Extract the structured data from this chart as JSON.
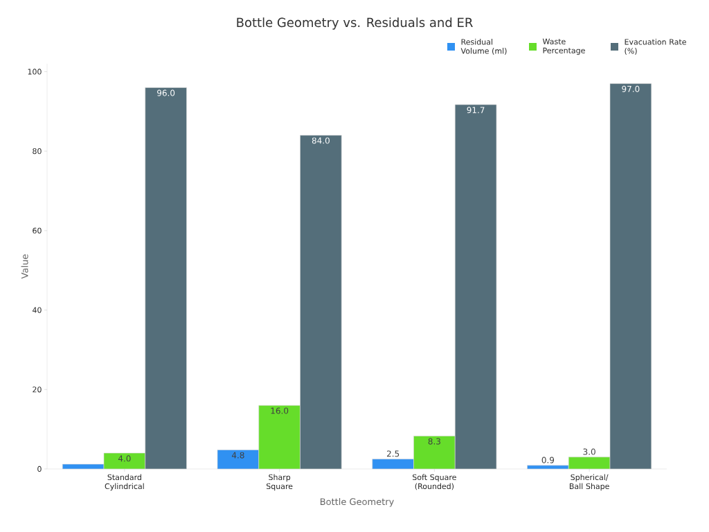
{
  "chart_data": {
    "type": "bar",
    "title": "Bottle Geometry vs. Residuals and ER",
    "xlabel": "Bottle Geometry",
    "ylabel": "Value",
    "categories": [
      "Standard Cylindrical",
      "Sharp Square",
      "Soft Square (Rounded)",
      "Spherical/ Ball Shape"
    ],
    "series": [
      {
        "name": "Residual Volume (ml)",
        "color": "#3091f2",
        "values": [
          1.2,
          4.8,
          2.5,
          0.9
        ],
        "value_labels": [
          null,
          "4.8",
          "2.5",
          "0.9"
        ]
      },
      {
        "name": "Waste Percentage",
        "color": "#66dd2a",
        "values": [
          4.0,
          16.0,
          8.3,
          3.0
        ],
        "value_labels": [
          "4.0",
          "16.0",
          "8.3",
          "3.0"
        ]
      },
      {
        "name": "Evacuation Rate (%)",
        "color": "#546e7a",
        "values": [
          96.0,
          84.0,
          91.7,
          97.0
        ],
        "value_labels": [
          "96.0",
          "84.0",
          "91.7",
          "97.0"
        ]
      }
    ],
    "ylim": [
      0,
      102
    ],
    "yticks": [
      0,
      20,
      40,
      60,
      80,
      100
    ],
    "grid": false,
    "legend": "top right"
  }
}
